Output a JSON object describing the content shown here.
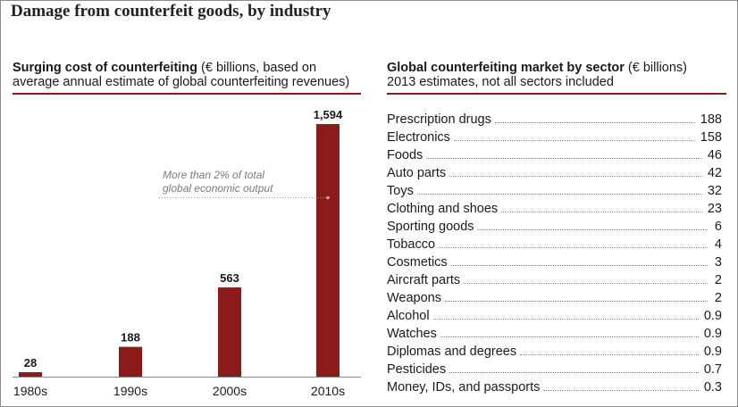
{
  "main_title": "Damage from counterfeit goods, by industry",
  "left_panel": {
    "title_bold": "Surging cost of counterfeiting",
    "title_rest_line1": " (€ billions, based on",
    "title_line2": "average annual estimate of global counterfeiting revenues)"
  },
  "right_panel": {
    "title_bold": "Global counterfeiting market by sector",
    "title_rest": " (€ billions)",
    "subtitle": "2013 estimates, not all sectors included"
  },
  "colors": {
    "bar": "#8b1a1a",
    "rule": "#8b1a1a"
  },
  "chart_data": [
    {
      "type": "bar",
      "title": "Surging cost of counterfeiting (€ billions, based on average annual estimate of global counterfeiting revenues)",
      "categories": [
        "1980s",
        "1990s",
        "2000s",
        "2010s"
      ],
      "values": [
        28,
        188,
        563,
        1594
      ],
      "value_labels": [
        "28",
        "188",
        "563",
        "1,594"
      ],
      "ylim": [
        0,
        1594
      ],
      "annotation": {
        "line1": "More than 2% of total",
        "line2": "global economic output",
        "target_category": "2010s"
      },
      "grid": false
    },
    {
      "type": "table",
      "title": "Global counterfeiting market by sector (€ billions)",
      "subtitle": "2013 estimates, not all sectors included",
      "rows": [
        {
          "label": "Prescription drugs",
          "value": "188"
        },
        {
          "label": "Electronics",
          "value": "158"
        },
        {
          "label": "Foods",
          "value": "46"
        },
        {
          "label": "Auto parts",
          "value": "42"
        },
        {
          "label": "Toys",
          "value": "32"
        },
        {
          "label": "Clothing and shoes",
          "value": "23"
        },
        {
          "label": "Sporting goods",
          "value": "6"
        },
        {
          "label": "Tobacco",
          "value": "4"
        },
        {
          "label": "Cosmetics",
          "value": "3"
        },
        {
          "label": "Aircraft parts",
          "value": "2"
        },
        {
          "label": "Weapons",
          "value": "2"
        },
        {
          "label": "Alcohol",
          "value": "0.9"
        },
        {
          "label": "Watches",
          "value": "0.9"
        },
        {
          "label": "Diplomas and degrees",
          "value": "0.9"
        },
        {
          "label": "Pesticides",
          "value": "0.7"
        },
        {
          "label": "Money, IDs, and passports",
          "value": "0.3"
        }
      ]
    }
  ]
}
